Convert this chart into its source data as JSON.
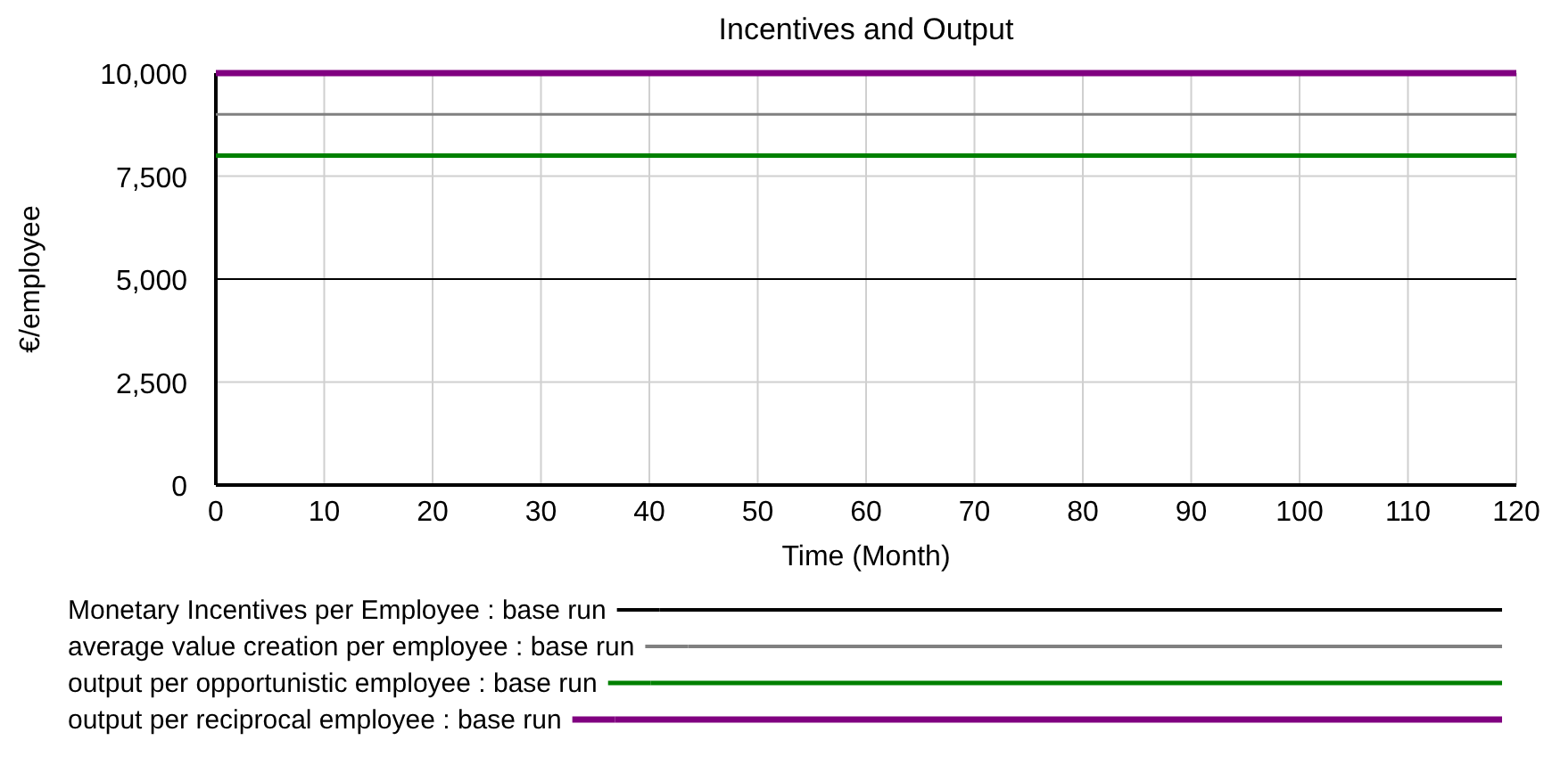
{
  "chart_data": {
    "type": "line",
    "title": "Incentives and Output",
    "xlabel": "Time (Month)",
    "ylabel": "€/employee",
    "x": [
      0,
      120
    ],
    "xlim": [
      0,
      120
    ],
    "xticks": [
      0,
      10,
      20,
      30,
      40,
      50,
      60,
      70,
      80,
      90,
      100,
      110,
      120
    ],
    "ylim": [
      0,
      10000
    ],
    "yticks": [
      {
        "value": 0,
        "label": "0"
      },
      {
        "value": 2500,
        "label": "2,500"
      },
      {
        "value": 5000,
        "label": "5,000"
      },
      {
        "value": 7500,
        "label": "7,500"
      },
      {
        "value": 10000,
        "label": "10,000"
      }
    ],
    "grid": true,
    "legend": "bottom",
    "marker": "none",
    "line_style": "solid",
    "series": [
      {
        "name": "Monetary Incentives per Employee : base run",
        "color": "#000000",
        "values": [
          5000,
          5000
        ]
      },
      {
        "name": "average value creation per employee : base run",
        "color": "#808080",
        "values": [
          9000,
          9000
        ]
      },
      {
        "name": "output per opportunistic employee : base run",
        "color": "#008000",
        "values": [
          8000,
          8000
        ]
      },
      {
        "name": "output per reciprocal employee : base run",
        "color": "#800080",
        "values": [
          10000,
          10000
        ]
      }
    ]
  }
}
